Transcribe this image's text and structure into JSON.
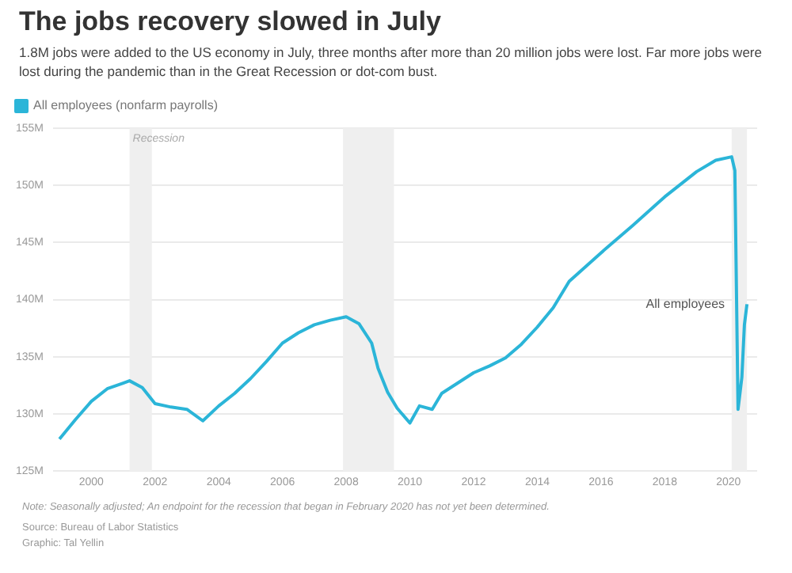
{
  "chart_data": {
    "type": "line",
    "title": "The jobs recovery slowed in July",
    "subtitle": "1.8M jobs were added to the US economy in July, three months after more than 20 million jobs were lost. Far more jobs were lost during the pandemic than in the Great Recession or dot-com bust.",
    "x": [
      1999.0,
      1999.5,
      2000.0,
      2000.5,
      2001.0,
      2001.2,
      2001.6,
      2002.0,
      2002.5,
      2003.0,
      2003.5,
      2004.0,
      2004.5,
      2005.0,
      2005.5,
      2006.0,
      2006.5,
      2007.0,
      2007.5,
      2008.0,
      2008.4,
      2008.8,
      2009.0,
      2009.3,
      2009.6,
      2010.0,
      2010.3,
      2010.7,
      2011.0,
      2011.5,
      2012.0,
      2012.5,
      2013.0,
      2013.5,
      2014.0,
      2014.5,
      2015.0,
      2016.0,
      2017.0,
      2018.0,
      2019.0,
      2019.6,
      2020.1,
      2020.2,
      2020.3,
      2020.42,
      2020.5,
      2020.58
    ],
    "series": [
      {
        "name": "All employees (nonfarm payrolls)",
        "color": "#2bb5d8",
        "values": [
          127.8,
          129.5,
          131.1,
          132.2,
          132.7,
          132.9,
          132.3,
          130.9,
          130.6,
          130.4,
          129.4,
          130.7,
          131.8,
          133.1,
          134.6,
          136.2,
          137.1,
          137.8,
          138.2,
          138.5,
          137.9,
          136.2,
          134.0,
          131.9,
          130.5,
          129.2,
          130.7,
          130.4,
          131.8,
          132.7,
          133.6,
          134.2,
          134.9,
          136.1,
          137.6,
          139.3,
          141.6,
          144.1,
          146.5,
          149.0,
          151.2,
          152.2,
          152.5,
          151.3,
          130.4,
          133.2,
          137.8,
          139.6
        ]
      }
    ],
    "xlim": [
      1998.8,
      2020.9
    ],
    "xticks": [
      2000,
      2002,
      2004,
      2006,
      2008,
      2010,
      2012,
      2014,
      2016,
      2018,
      2020
    ],
    "ylim": [
      125,
      155
    ],
    "yticks": [
      {
        "value": 125,
        "label": "125M"
      },
      {
        "value": 130,
        "label": "130M"
      },
      {
        "value": 135,
        "label": "135M"
      },
      {
        "value": 140,
        "label": "140M"
      },
      {
        "value": 145,
        "label": "145M"
      },
      {
        "value": 150,
        "label": "150M"
      },
      {
        "value": 155,
        "label": "155M"
      }
    ],
    "grid": "y",
    "legend": "top left",
    "marker": "none",
    "line_style": "solid",
    "bands": [
      {
        "axis": "x",
        "from": 2001.2,
        "to": 2001.9,
        "label": "Recession",
        "color": "#efefef"
      },
      {
        "axis": "x",
        "from": 2007.9,
        "to": 2009.5,
        "color": "#efefef"
      },
      {
        "axis": "x",
        "from": 2020.1,
        "to": 2020.58,
        "color": "#efefef"
      }
    ],
    "annotations": [
      {
        "text": "All employees",
        "x": 2020.58,
        "y": 139.6
      },
      "Note: Seasonally adjusted; An endpoint for the recession that began in February 2020 has not yet been determined.",
      "Source: Bureau of Labor Statistics",
      "Graphic: Tal Yellin"
    ]
  }
}
